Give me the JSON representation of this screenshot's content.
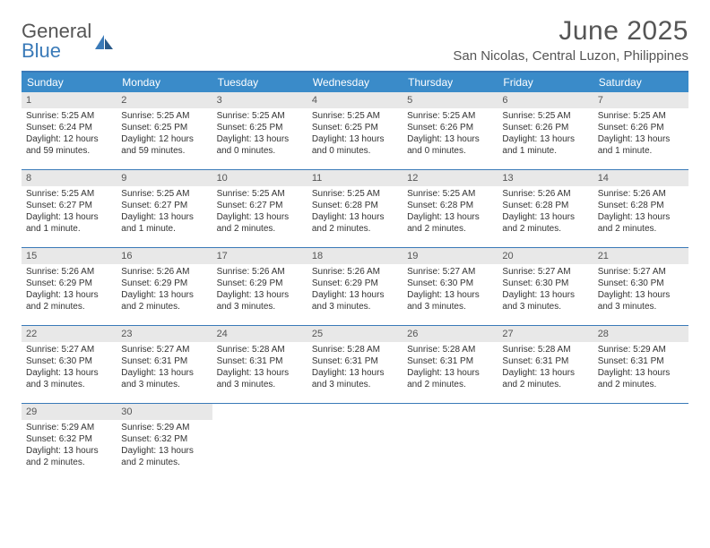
{
  "logo": {
    "text1": "General",
    "text2": "Blue"
  },
  "title": "June 2025",
  "location": "San Nicolas, Central Luzon, Philippines",
  "colors": {
    "header_bar": "#3a8bc9",
    "accent": "#3a7ab8",
    "daynum_bg": "#e8e8e8",
    "text_gray": "#555555"
  },
  "weekdays": [
    "Sunday",
    "Monday",
    "Tuesday",
    "Wednesday",
    "Thursday",
    "Friday",
    "Saturday"
  ],
  "weeks": [
    [
      {
        "n": "1",
        "sr": "Sunrise: 5:25 AM",
        "ss": "Sunset: 6:24 PM",
        "d1": "Daylight: 12 hours",
        "d2": "and 59 minutes."
      },
      {
        "n": "2",
        "sr": "Sunrise: 5:25 AM",
        "ss": "Sunset: 6:25 PM",
        "d1": "Daylight: 12 hours",
        "d2": "and 59 minutes."
      },
      {
        "n": "3",
        "sr": "Sunrise: 5:25 AM",
        "ss": "Sunset: 6:25 PM",
        "d1": "Daylight: 13 hours",
        "d2": "and 0 minutes."
      },
      {
        "n": "4",
        "sr": "Sunrise: 5:25 AM",
        "ss": "Sunset: 6:25 PM",
        "d1": "Daylight: 13 hours",
        "d2": "and 0 minutes."
      },
      {
        "n": "5",
        "sr": "Sunrise: 5:25 AM",
        "ss": "Sunset: 6:26 PM",
        "d1": "Daylight: 13 hours",
        "d2": "and 0 minutes."
      },
      {
        "n": "6",
        "sr": "Sunrise: 5:25 AM",
        "ss": "Sunset: 6:26 PM",
        "d1": "Daylight: 13 hours",
        "d2": "and 1 minute."
      },
      {
        "n": "7",
        "sr": "Sunrise: 5:25 AM",
        "ss": "Sunset: 6:26 PM",
        "d1": "Daylight: 13 hours",
        "d2": "and 1 minute."
      }
    ],
    [
      {
        "n": "8",
        "sr": "Sunrise: 5:25 AM",
        "ss": "Sunset: 6:27 PM",
        "d1": "Daylight: 13 hours",
        "d2": "and 1 minute."
      },
      {
        "n": "9",
        "sr": "Sunrise: 5:25 AM",
        "ss": "Sunset: 6:27 PM",
        "d1": "Daylight: 13 hours",
        "d2": "and 1 minute."
      },
      {
        "n": "10",
        "sr": "Sunrise: 5:25 AM",
        "ss": "Sunset: 6:27 PM",
        "d1": "Daylight: 13 hours",
        "d2": "and 2 minutes."
      },
      {
        "n": "11",
        "sr": "Sunrise: 5:25 AM",
        "ss": "Sunset: 6:28 PM",
        "d1": "Daylight: 13 hours",
        "d2": "and 2 minutes."
      },
      {
        "n": "12",
        "sr": "Sunrise: 5:25 AM",
        "ss": "Sunset: 6:28 PM",
        "d1": "Daylight: 13 hours",
        "d2": "and 2 minutes."
      },
      {
        "n": "13",
        "sr": "Sunrise: 5:26 AM",
        "ss": "Sunset: 6:28 PM",
        "d1": "Daylight: 13 hours",
        "d2": "and 2 minutes."
      },
      {
        "n": "14",
        "sr": "Sunrise: 5:26 AM",
        "ss": "Sunset: 6:28 PM",
        "d1": "Daylight: 13 hours",
        "d2": "and 2 minutes."
      }
    ],
    [
      {
        "n": "15",
        "sr": "Sunrise: 5:26 AM",
        "ss": "Sunset: 6:29 PM",
        "d1": "Daylight: 13 hours",
        "d2": "and 2 minutes."
      },
      {
        "n": "16",
        "sr": "Sunrise: 5:26 AM",
        "ss": "Sunset: 6:29 PM",
        "d1": "Daylight: 13 hours",
        "d2": "and 2 minutes."
      },
      {
        "n": "17",
        "sr": "Sunrise: 5:26 AM",
        "ss": "Sunset: 6:29 PM",
        "d1": "Daylight: 13 hours",
        "d2": "and 3 minutes."
      },
      {
        "n": "18",
        "sr": "Sunrise: 5:26 AM",
        "ss": "Sunset: 6:29 PM",
        "d1": "Daylight: 13 hours",
        "d2": "and 3 minutes."
      },
      {
        "n": "19",
        "sr": "Sunrise: 5:27 AM",
        "ss": "Sunset: 6:30 PM",
        "d1": "Daylight: 13 hours",
        "d2": "and 3 minutes."
      },
      {
        "n": "20",
        "sr": "Sunrise: 5:27 AM",
        "ss": "Sunset: 6:30 PM",
        "d1": "Daylight: 13 hours",
        "d2": "and 3 minutes."
      },
      {
        "n": "21",
        "sr": "Sunrise: 5:27 AM",
        "ss": "Sunset: 6:30 PM",
        "d1": "Daylight: 13 hours",
        "d2": "and 3 minutes."
      }
    ],
    [
      {
        "n": "22",
        "sr": "Sunrise: 5:27 AM",
        "ss": "Sunset: 6:30 PM",
        "d1": "Daylight: 13 hours",
        "d2": "and 3 minutes."
      },
      {
        "n": "23",
        "sr": "Sunrise: 5:27 AM",
        "ss": "Sunset: 6:31 PM",
        "d1": "Daylight: 13 hours",
        "d2": "and 3 minutes."
      },
      {
        "n": "24",
        "sr": "Sunrise: 5:28 AM",
        "ss": "Sunset: 6:31 PM",
        "d1": "Daylight: 13 hours",
        "d2": "and 3 minutes."
      },
      {
        "n": "25",
        "sr": "Sunrise: 5:28 AM",
        "ss": "Sunset: 6:31 PM",
        "d1": "Daylight: 13 hours",
        "d2": "and 3 minutes."
      },
      {
        "n": "26",
        "sr": "Sunrise: 5:28 AM",
        "ss": "Sunset: 6:31 PM",
        "d1": "Daylight: 13 hours",
        "d2": "and 2 minutes."
      },
      {
        "n": "27",
        "sr": "Sunrise: 5:28 AM",
        "ss": "Sunset: 6:31 PM",
        "d1": "Daylight: 13 hours",
        "d2": "and 2 minutes."
      },
      {
        "n": "28",
        "sr": "Sunrise: 5:29 AM",
        "ss": "Sunset: 6:31 PM",
        "d1": "Daylight: 13 hours",
        "d2": "and 2 minutes."
      }
    ],
    [
      {
        "n": "29",
        "sr": "Sunrise: 5:29 AM",
        "ss": "Sunset: 6:32 PM",
        "d1": "Daylight: 13 hours",
        "d2": "and 2 minutes."
      },
      {
        "n": "30",
        "sr": "Sunrise: 5:29 AM",
        "ss": "Sunset: 6:32 PM",
        "d1": "Daylight: 13 hours",
        "d2": "and 2 minutes."
      },
      {
        "empty": true
      },
      {
        "empty": true
      },
      {
        "empty": true
      },
      {
        "empty": true
      },
      {
        "empty": true
      }
    ]
  ]
}
